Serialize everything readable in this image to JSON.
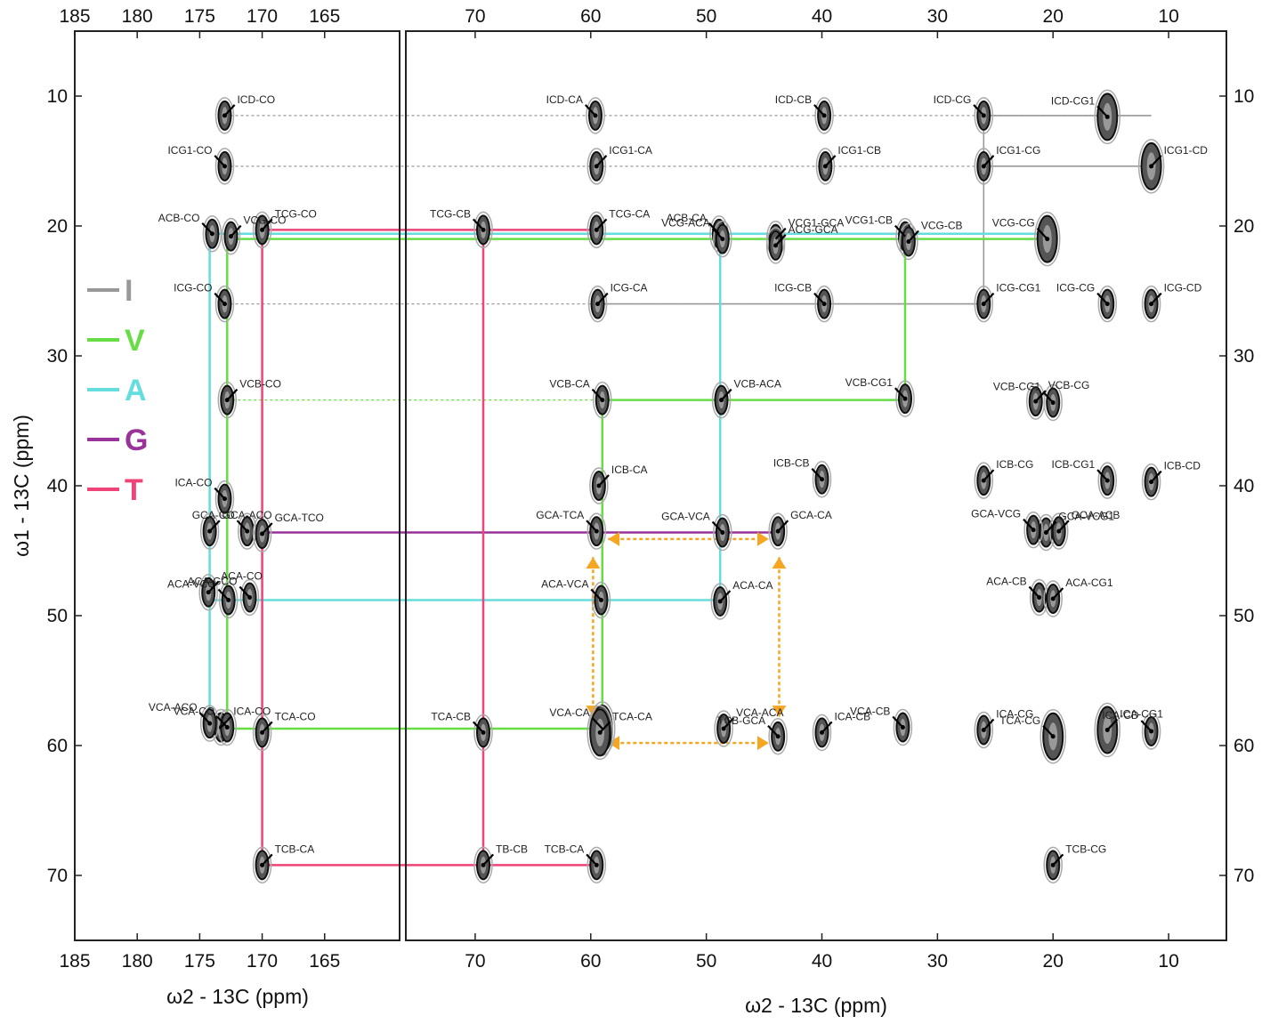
{
  "chart_data": {
    "type": "scatter",
    "title": "",
    "colors": {
      "I": "#999999",
      "V": "#66dd44",
      "A": "#66dddd",
      "G": "#993399",
      "T": "#ee4477",
      "arrow": "#f5a623"
    },
    "panels": [
      {
        "name": "carbonyl",
        "xlabel": "ω2 - 13C (ppm)",
        "xlim": [
          185,
          159
        ],
        "xticks": [
          185,
          180,
          175,
          170,
          165
        ]
      },
      {
        "name": "aliphatic",
        "xlabel": "ω2 - 13C (ppm)",
        "xlim": [
          76,
          5
        ],
        "xticks": [
          70,
          60,
          50,
          40,
          30,
          20,
          10
        ]
      }
    ],
    "ylabel": "ω1 - 13C (ppm)",
    "ylim": [
      5,
      75
    ],
    "yticks": [
      10,
      20,
      30,
      40,
      50,
      60,
      70
    ],
    "legend": {
      "position": "left",
      "entries": [
        {
          "label": "I",
          "key": "I"
        },
        {
          "label": "V",
          "key": "V"
        },
        {
          "label": "A",
          "key": "A"
        },
        {
          "label": "G",
          "key": "G"
        },
        {
          "label": "T",
          "key": "T"
        }
      ]
    },
    "peaks": [
      {
        "label": "ICD-CO",
        "panel": 0,
        "x": 173.0,
        "y": 11.5
      },
      {
        "label": "ICG1-CO",
        "panel": 0,
        "x": 173.0,
        "y": 15.4
      },
      {
        "label": "VCG-CO",
        "panel": 0,
        "x": 172.5,
        "y": 20.8
      },
      {
        "label": "ACB-CO",
        "panel": 0,
        "x": 174.0,
        "y": 20.6
      },
      {
        "label": "TCG-CO",
        "panel": 0,
        "x": 170.0,
        "y": 20.3
      },
      {
        "label": "ICG-CO",
        "panel": 0,
        "x": 173.0,
        "y": 26.0
      },
      {
        "label": "VCB-CO",
        "panel": 0,
        "x": 172.8,
        "y": 33.4
      },
      {
        "label": "ICA-CO",
        "panel": 0,
        "x": 173.0,
        "y": 41.0
      },
      {
        "label": "GCA-ACO",
        "panel": 0,
        "x": 174.2,
        "y": 43.5
      },
      {
        "label": "GCA-CO",
        "panel": 0,
        "x": 171.2,
        "y": 43.5
      },
      {
        "label": "GCA-TCO",
        "panel": 0,
        "x": 170.0,
        "y": 43.7
      },
      {
        "label": "ACA-VCO",
        "panel": 0,
        "x": 172.7,
        "y": 48.8
      },
      {
        "label": "ACA-CO",
        "panel": 0,
        "x": 174.3,
        "y": 48.2
      },
      {
        "label": "ACA-GCO",
        "panel": 0,
        "x": 171.0,
        "y": 48.6
      },
      {
        "label": "ICA-CO",
        "panel": 0,
        "x": 173.3,
        "y": 58.6
      },
      {
        "label": "VCA-CO",
        "panel": 0,
        "x": 172.8,
        "y": 58.6
      },
      {
        "label": "TCA-CO",
        "panel": 0,
        "x": 170.0,
        "y": 59.0
      },
      {
        "label": "VCA-ACO",
        "panel": 0,
        "x": 174.2,
        "y": 58.3
      },
      {
        "label": "TCB-CA",
        "panel": 0,
        "x": 170.0,
        "y": 69.2
      },
      {
        "label": "ICD-CA",
        "panel": 1,
        "x": 59.6,
        "y": 11.5
      },
      {
        "label": "ICG1-CA",
        "panel": 1,
        "x": 59.5,
        "y": 15.4
      },
      {
        "label": "TCG-CB",
        "panel": 1,
        "x": 69.3,
        "y": 20.3
      },
      {
        "label": "TCG-CA",
        "panel": 1,
        "x": 59.5,
        "y": 20.3
      },
      {
        "label": "ACB-CA",
        "panel": 1,
        "x": 48.9,
        "y": 20.6
      },
      {
        "label": "VCG1-GCA",
        "panel": 1,
        "x": 44.0,
        "y": 21.0
      },
      {
        "label": "VCG-ACA",
        "panel": 1,
        "x": 48.6,
        "y": 21.0
      },
      {
        "label": "ACG-GCA",
        "panel": 1,
        "x": 44.0,
        "y": 21.5
      },
      {
        "label": "ICD-CB",
        "panel": 1,
        "x": 39.8,
        "y": 11.5
      },
      {
        "label": "ICG1-CB",
        "panel": 1,
        "x": 39.7,
        "y": 15.4
      },
      {
        "label": "ICD-CG",
        "panel": 1,
        "x": 26.0,
        "y": 11.5
      },
      {
        "label": "ICG1-CG",
        "panel": 1,
        "x": 26.0,
        "y": 15.4
      },
      {
        "label": "ICD-CG1",
        "panel": 1,
        "x": 15.3,
        "y": 11.6
      },
      {
        "label": "ICG1-CD",
        "panel": 1,
        "x": 11.5,
        "y": 15.4
      },
      {
        "label": "VCG1-CB",
        "panel": 1,
        "x": 32.8,
        "y": 20.8
      },
      {
        "label": "VCG-CB",
        "panel": 1,
        "x": 32.5,
        "y": 21.2
      },
      {
        "label": "VCG-CG",
        "panel": 1,
        "x": 20.5,
        "y": 21.0
      },
      {
        "label": "ICG-CA",
        "panel": 1,
        "x": 59.4,
        "y": 26.0
      },
      {
        "label": "ICG-CB",
        "panel": 1,
        "x": 39.8,
        "y": 26.0
      },
      {
        "label": "ICG-CG1",
        "panel": 1,
        "x": 26.0,
        "y": 26.0
      },
      {
        "label": "ICG-CG",
        "panel": 1,
        "x": 15.3,
        "y": 26.0
      },
      {
        "label": "ICG-CD",
        "panel": 1,
        "x": 11.5,
        "y": 26.0
      },
      {
        "label": "VCB-CA",
        "panel": 1,
        "x": 59.0,
        "y": 33.4
      },
      {
        "label": "VCB-ACA",
        "panel": 1,
        "x": 48.7,
        "y": 33.4
      },
      {
        "label": "VCB-CG1",
        "panel": 1,
        "x": 32.8,
        "y": 33.3
      },
      {
        "label": "VCB-CG",
        "panel": 1,
        "x": 21.5,
        "y": 33.5
      },
      {
        "label": "VCB-CG1",
        "panel": 1,
        "x": 20.0,
        "y": 33.6
      },
      {
        "label": "ICB-CA",
        "panel": 1,
        "x": 59.3,
        "y": 40.0
      },
      {
        "label": "ICB-CB",
        "panel": 1,
        "x": 40.0,
        "y": 39.5
      },
      {
        "label": "ICB-CG",
        "panel": 1,
        "x": 26.0,
        "y": 39.6
      },
      {
        "label": "ICB-CG1",
        "panel": 1,
        "x": 15.3,
        "y": 39.6
      },
      {
        "label": "ICB-CD",
        "panel": 1,
        "x": 11.5,
        "y": 39.7
      },
      {
        "label": "GCA-VCA",
        "panel": 1,
        "x": 48.6,
        "y": 43.6
      },
      {
        "label": "GCA-CA",
        "panel": 1,
        "x": 43.8,
        "y": 43.5
      },
      {
        "label": "GCA-TCA",
        "panel": 1,
        "x": 59.5,
        "y": 43.5
      },
      {
        "label": "GCA-VCG1",
        "panel": 1,
        "x": 20.6,
        "y": 43.6
      },
      {
        "label": "GCA-VCG",
        "panel": 1,
        "x": 21.7,
        "y": 43.4
      },
      {
        "label": "GCA-ACB",
        "panel": 1,
        "x": 19.5,
        "y": 43.5
      },
      {
        "label": "ACA-VCA",
        "panel": 1,
        "x": 59.1,
        "y": 48.8
      },
      {
        "label": "ACA-CA",
        "panel": 1,
        "x": 48.8,
        "y": 48.9
      },
      {
        "label": "ACA-CB",
        "panel": 1,
        "x": 21.2,
        "y": 48.6
      },
      {
        "label": "ACA-CG1",
        "panel": 1,
        "x": 20.0,
        "y": 48.7
      },
      {
        "label": "VCA-CA",
        "panel": 1,
        "x": 59.0,
        "y": 58.7
      },
      {
        "label": "TCA-CA",
        "panel": 1,
        "x": 59.2,
        "y": 59.0
      },
      {
        "label": "TCA-CB",
        "panel": 1,
        "x": 69.3,
        "y": 59.0
      },
      {
        "label": "VCA-ACA",
        "panel": 1,
        "x": 48.5,
        "y": 58.7
      },
      {
        "label": "TCB-GCA",
        "panel": 1,
        "x": 43.8,
        "y": 59.3
      },
      {
        "label": "ICA-CB",
        "panel": 1,
        "x": 40.0,
        "y": 59.0
      },
      {
        "label": "VCA-CB",
        "panel": 1,
        "x": 33.0,
        "y": 58.6
      },
      {
        "label": "ICA-CG",
        "panel": 1,
        "x": 26.0,
        "y": 58.8
      },
      {
        "label": "TCA-CG",
        "panel": 1,
        "x": 20.0,
        "y": 59.3
      },
      {
        "label": "ICA-CG1",
        "panel": 1,
        "x": 15.3,
        "y": 58.8
      },
      {
        "label": "ICA-CD",
        "panel": 1,
        "x": 11.5,
        "y": 58.9
      },
      {
        "label": "TB-CB",
        "panel": 1,
        "x": 69.3,
        "y": 69.2
      },
      {
        "label": "TCB-CA",
        "panel": 1,
        "x": 59.5,
        "y": 69.2
      },
      {
        "label": "TCB-CG",
        "panel": 1,
        "x": 20.0,
        "y": 69.2
      }
    ]
  }
}
